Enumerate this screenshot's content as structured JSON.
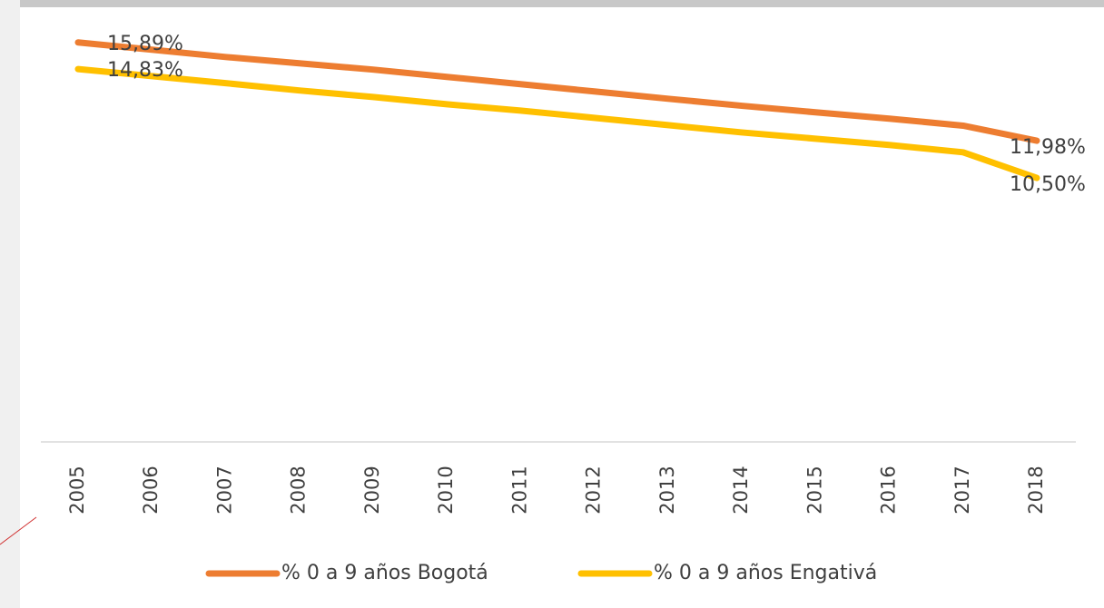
{
  "chart_data": {
    "type": "line",
    "categories": [
      "2005",
      "2006",
      "2007",
      "2008",
      "2009",
      "2010",
      "2011",
      "2012",
      "2013",
      "2014",
      "2015",
      "2016",
      "2017",
      "2018"
    ],
    "series": [
      {
        "name": "% 0 a 9 años Bogotá",
        "color": "#ed7d31",
        "values": [
          15.89,
          15.6,
          15.31,
          15.06,
          14.81,
          14.52,
          14.23,
          13.94,
          13.65,
          13.37,
          13.11,
          12.86,
          12.58,
          11.98
        ],
        "value_labels": [
          "15,89%",
          null,
          null,
          null,
          null,
          null,
          null,
          null,
          null,
          null,
          null,
          null,
          null,
          "11,98%"
        ]
      },
      {
        "name": "% 0 a 9 años Engativá",
        "color": "#ffc000",
        "values": [
          14.83,
          14.55,
          14.27,
          13.98,
          13.72,
          13.43,
          13.18,
          12.89,
          12.6,
          12.31,
          12.06,
          11.81,
          11.52,
          10.5
        ],
        "value_labels": [
          "14,83%",
          null,
          null,
          null,
          null,
          null,
          null,
          null,
          null,
          null,
          null,
          null,
          null,
          "10,50%"
        ]
      }
    ],
    "ylim": [
      0,
      17
    ]
  }
}
